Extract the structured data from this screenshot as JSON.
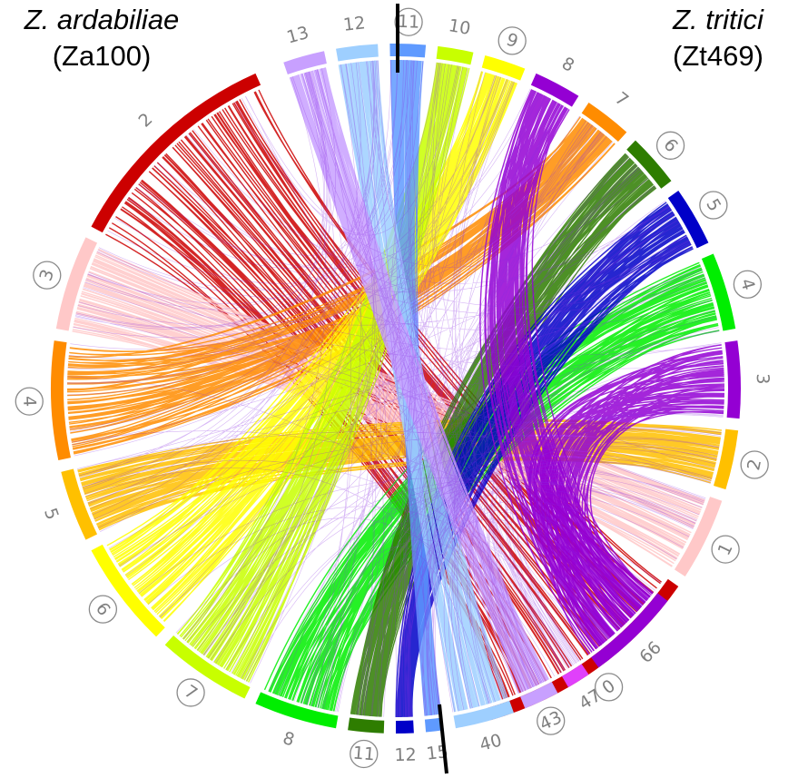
{
  "legend_left": {
    "species": "Z. ardabiliae",
    "strain": "(Za100)"
  },
  "legend_right": {
    "species": "Z. tritici",
    "strain": "(Zt469)"
  },
  "right_chromosomes": [
    {
      "label": "0",
      "color": "#cc0000",
      "circled": true
    },
    {
      "label": "1",
      "color": "#ffc8c8",
      "circled": true
    },
    {
      "label": "2",
      "color": "#ffc000",
      "circled": true
    },
    {
      "label": "3",
      "color": "#9400d3",
      "circled": false
    },
    {
      "label": "4",
      "color": "#00ee00",
      "circled": true
    },
    {
      "label": "5",
      "color": "#0000c8",
      "circled": true
    },
    {
      "label": "6",
      "color": "#2e7d00",
      "circled": true
    },
    {
      "label": "7",
      "color": "#ff8c00",
      "circled": false
    },
    {
      "label": "8",
      "color": "#9400d3",
      "circled": false
    },
    {
      "label": "9",
      "color": "#ffff00",
      "circled": true
    },
    {
      "label": "10",
      "color": "#c8ff00",
      "circled": false
    },
    {
      "label": "11",
      "color": "#5f9aff",
      "circled": true
    },
    {
      "label": "12",
      "color": "#9ecfff",
      "circled": false
    },
    {
      "label": "13",
      "color": "#c8a0ff",
      "circled": false
    }
  ],
  "left_chromosomes": [
    {
      "label": "2",
      "color": "#cc0000",
      "circled": false
    },
    {
      "label": "3",
      "color": "#ffc8c8",
      "circled": true
    },
    {
      "label": "4",
      "color": "#ff8c00",
      "circled": true
    },
    {
      "label": "5",
      "color": "#ffc000",
      "circled": false
    },
    {
      "label": "6",
      "color": "#ffff00",
      "circled": true
    },
    {
      "label": "7",
      "color": "#c8ff00",
      "circled": true
    },
    {
      "label": "8",
      "color": "#00ee00",
      "circled": false
    },
    {
      "label": "11",
      "color": "#2e7d00",
      "circled": true
    },
    {
      "label": "12",
      "color": "#0000c8",
      "circled": false
    },
    {
      "label": "15",
      "color": "#5f9aff",
      "circled": false
    },
    {
      "label": "40",
      "color": "#9ecfff",
      "circled": false
    },
    {
      "label": "43",
      "color": "#c8a0ff",
      "circled": true
    },
    {
      "label": "47",
      "color": "#e040fb",
      "circled": false
    },
    {
      "label": "66",
      "color": "#9400d3",
      "circled": false
    }
  ],
  "links": [
    {
      "from": "L2",
      "to": "R0",
      "color": "#cc0000"
    },
    {
      "from": "L3",
      "to": "R1",
      "color": "#ffc8c8"
    },
    {
      "from": "L4",
      "to": "R7",
      "color": "#ff8c00"
    },
    {
      "from": "L5",
      "to": "R2",
      "color": "#ffc000"
    },
    {
      "from": "L6",
      "to": "R9",
      "color": "#ffff00"
    },
    {
      "from": "L7",
      "to": "R10",
      "color": "#c8ff00"
    },
    {
      "from": "L8",
      "to": "R4",
      "color": "#00ee00"
    },
    {
      "from": "L11",
      "to": "R6",
      "color": "#2e7d00"
    },
    {
      "from": "L12",
      "to": "R5",
      "color": "#0000c8"
    },
    {
      "from": "L15",
      "to": "R11",
      "color": "#5f9aff"
    },
    {
      "from": "L40",
      "to": "R12",
      "color": "#9ecfff"
    },
    {
      "from": "L43",
      "to": "R13",
      "color": "#c8a0ff"
    },
    {
      "from": "L66",
      "to": "R8",
      "color": "#9400d3"
    },
    {
      "from": "L66",
      "to": "R3",
      "color": "#9400d3"
    }
  ]
}
